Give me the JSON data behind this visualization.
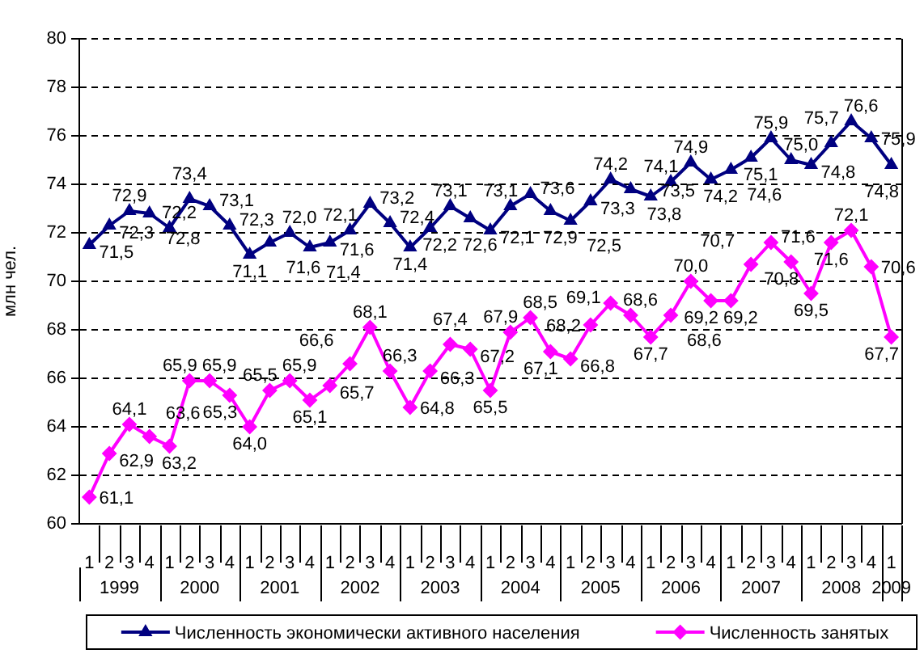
{
  "chart_data": {
    "type": "line",
    "ylabel": "млн чел.",
    "categories": [
      "1",
      "2",
      "3",
      "4",
      "1",
      "2",
      "3",
      "4",
      "1",
      "2",
      "3",
      "4",
      "1",
      "2",
      "3",
      "4",
      "1",
      "2",
      "3",
      "4",
      "1",
      "2",
      "3",
      "4",
      "1",
      "2",
      "3",
      "4",
      "1",
      "2",
      "3",
      "4",
      "1",
      "2",
      "3",
      "4",
      "1",
      "2",
      "3",
      "4",
      "1"
    ],
    "annotations": [
      "1999",
      "2000",
      "2001",
      "2002",
      "2003",
      "2004",
      "2005",
      "2006",
      "2007",
      "2008",
      "2009"
    ],
    "series": [
      {
        "name": "Численность экономически активного населения",
        "color": "#000080",
        "marker": "triangle",
        "values": [
          71.5,
          72.3,
          72.9,
          72.8,
          72.2,
          73.4,
          73.1,
          72.3,
          71.1,
          71.6,
          72.0,
          71.4,
          71.6,
          72.1,
          73.2,
          72.4,
          71.4,
          72.2,
          73.1,
          72.6,
          72.1,
          73.1,
          73.6,
          72.9,
          72.5,
          73.3,
          74.2,
          73.8,
          73.5,
          74.1,
          74.9,
          74.2,
          74.6,
          75.1,
          75.9,
          75.0,
          74.8,
          75.7,
          76.6,
          75.9,
          74.8
        ],
        "value_labels": [
          "71,5",
          "72,3",
          "72,9",
          "72,8",
          "72,2",
          "73,4",
          "73,1",
          "72,3",
          "71,1",
          "71,6",
          "72,0",
          "71,4",
          "71,6",
          "72,1",
          "73,2",
          "72,4",
          "71,4",
          "72,2",
          "73,1",
          "72,6",
          "72,1",
          "73,1",
          "73,6",
          "72,9",
          "72,5",
          "73,3",
          "74,2",
          "73,8",
          "73,5",
          "74,1",
          "74,9",
          "74,2",
          "74,6",
          "75,1",
          "75,9",
          "75,0",
          "74,8",
          "75,7",
          "76,6",
          "75,9",
          "74,8"
        ]
      },
      {
        "name": "Численность занятых",
        "color": "#ff00ff",
        "marker": "diamond",
        "values": [
          61.1,
          62.9,
          64.1,
          63.6,
          63.2,
          65.9,
          65.9,
          65.3,
          64.0,
          65.5,
          65.9,
          65.1,
          65.7,
          66.6,
          68.1,
          66.3,
          64.8,
          66.3,
          67.4,
          67.2,
          65.5,
          67.9,
          68.5,
          67.1,
          66.8,
          68.2,
          69.1,
          68.6,
          67.7,
          68.6,
          70.0,
          69.2,
          69.2,
          70.7,
          71.6,
          70.8,
          69.5,
          71.6,
          72.1,
          70.6,
          67.7
        ],
        "value_labels": [
          "61,1",
          "62,9",
          "64,1",
          "63,6",
          "63,2",
          "65,9",
          "65,9",
          "65,3",
          "64,0",
          "65,5",
          "65,9",
          "65,1",
          "65,7",
          "66,6",
          "68,1",
          "66,3",
          "64,8",
          "66,3",
          "67,4",
          "67,2",
          "65,5",
          "67,9",
          "68,5",
          "67,1",
          "66,8",
          "68,2",
          "69,1",
          "68,6",
          "67,7",
          "68,6",
          "70,0",
          "69,2",
          "69,2",
          "70,7",
          "71,6",
          "70,8",
          "69,5",
          "71,6",
          "72,1",
          "70,6",
          "67,7"
        ]
      }
    ],
    "ylim": [
      60,
      80
    ],
    "yticks": [
      60,
      62,
      64,
      66,
      68,
      70,
      72,
      74,
      76,
      78,
      80
    ],
    "grid": "y",
    "legend": "bottom",
    "line_style": "solid"
  }
}
